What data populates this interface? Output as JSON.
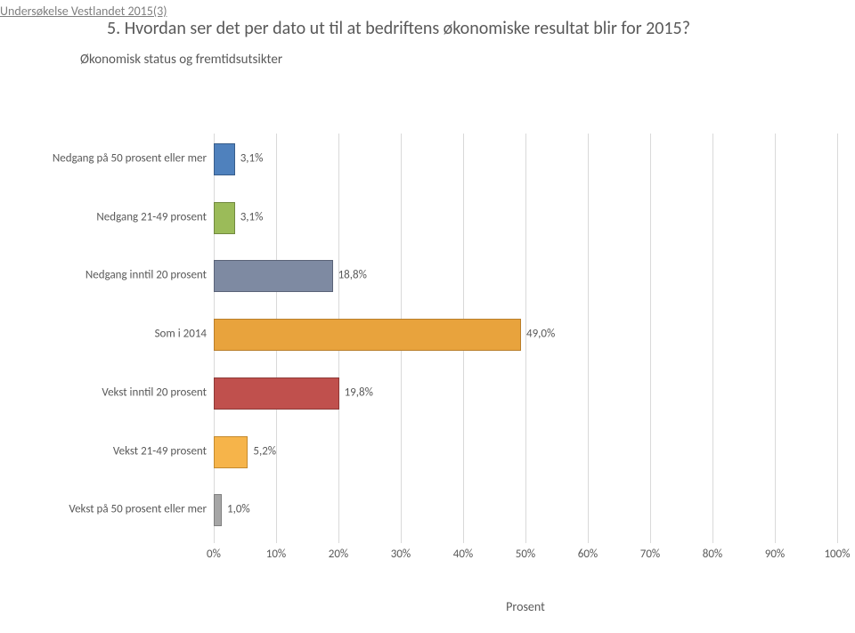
{
  "header": "Undersøkelse Vestlandet 2015(3)",
  "title": "5. Hvordan ser det per dato ut til at bedriftens økonomiske resultat blir for 2015?",
  "subtitle": "Økonomisk status og fremtidsutsikter",
  "chart": {
    "type": "bar-horizontal",
    "xlabel": "Prosent",
    "xmax": 100,
    "ticks": [
      {
        "v": 0,
        "label": "0%"
      },
      {
        "v": 10,
        "label": "10%"
      },
      {
        "v": 20,
        "label": "20%"
      },
      {
        "v": 30,
        "label": "30%"
      },
      {
        "v": 40,
        "label": "40%"
      },
      {
        "v": 50,
        "label": "50%"
      },
      {
        "v": 60,
        "label": "60%"
      },
      {
        "v": 70,
        "label": "70%"
      },
      {
        "v": 80,
        "label": "80%"
      },
      {
        "v": 90,
        "label": "90%"
      },
      {
        "v": 100,
        "label": "100%"
      }
    ],
    "grid_color": "#d9d9d9",
    "label_fontsize": 13,
    "series": [
      {
        "label": "Nedgang på 50 prosent eller mer",
        "value": 3.1,
        "value_label": "3,1%",
        "color": "#4f81bd",
        "border": "#385d8a"
      },
      {
        "label": "Nedgang 21-49 prosent",
        "value": 3.1,
        "value_label": "3,1%",
        "color": "#9bbb59",
        "border": "#71893f"
      },
      {
        "label": "Nedgang inntil 20 prosent",
        "value": 18.8,
        "value_label": "18,8%",
        "color": "#7e8aa2",
        "border": "#5a6378"
      },
      {
        "label": "Som i 2014",
        "value": 49.0,
        "value_label": "49,0%",
        "color": "#e8a33d",
        "border": "#b97e2a"
      },
      {
        "label": "Vekst inntil 20 prosent",
        "value": 19.8,
        "value_label": "19,8%",
        "color": "#c0504d",
        "border": "#8c3836"
      },
      {
        "label": "Vekst 21-49 prosent",
        "value": 5.2,
        "value_label": "5,2%",
        "color": "#f6b44a",
        "border": "#c48a2f"
      },
      {
        "label": "Vekst på 50 prosent eller mer",
        "value": 1.0,
        "value_label": "1,0%",
        "color": "#a6a6a6",
        "border": "#7f7f7f"
      }
    ]
  }
}
